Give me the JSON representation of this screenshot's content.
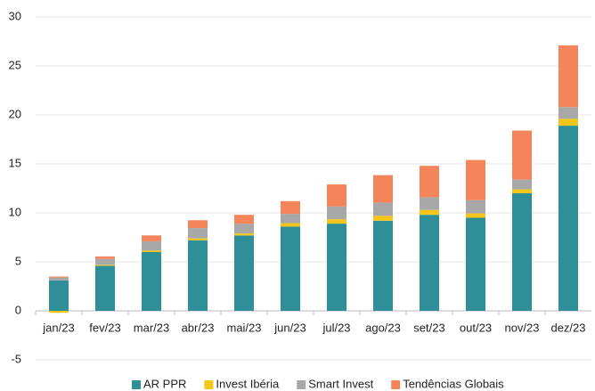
{
  "chart_data": {
    "type": "stacked_bar",
    "categories": [
      "jan/23",
      "fev/23",
      "mar/23",
      "abr/23",
      "mai/23",
      "jun/23",
      "jul/23",
      "ago/23",
      "set/23",
      "out/23",
      "nov/23",
      "dez/23"
    ],
    "series": [
      {
        "name": "AR PPR",
        "color": "#2f8f99",
        "values": [
          3.1,
          4.6,
          6.0,
          7.2,
          7.7,
          8.6,
          8.9,
          9.2,
          9.8,
          9.5,
          12.0,
          18.9
        ]
      },
      {
        "name": "Invest Ibéria",
        "color": "#f5c518",
        "values": [
          -0.2,
          0.1,
          0.15,
          0.2,
          0.2,
          0.35,
          0.45,
          0.5,
          0.5,
          0.45,
          0.4,
          0.7
        ]
      },
      {
        "name": "Smart Invest",
        "color": "#a8a8a8",
        "values": [
          0.3,
          0.6,
          0.95,
          1.05,
          1.0,
          0.95,
          1.3,
          1.35,
          1.3,
          1.35,
          1.0,
          1.2
        ]
      },
      {
        "name": "Tendências Globais",
        "color": "#f5845a",
        "values": [
          0.1,
          0.25,
          0.6,
          0.8,
          0.9,
          1.3,
          2.25,
          2.8,
          3.2,
          4.1,
          5.0,
          6.3
        ]
      }
    ],
    "ylim": [
      -5,
      30
    ],
    "yticks": [
      -5,
      0,
      5,
      10,
      15,
      20,
      25,
      30
    ],
    "grid": true
  }
}
